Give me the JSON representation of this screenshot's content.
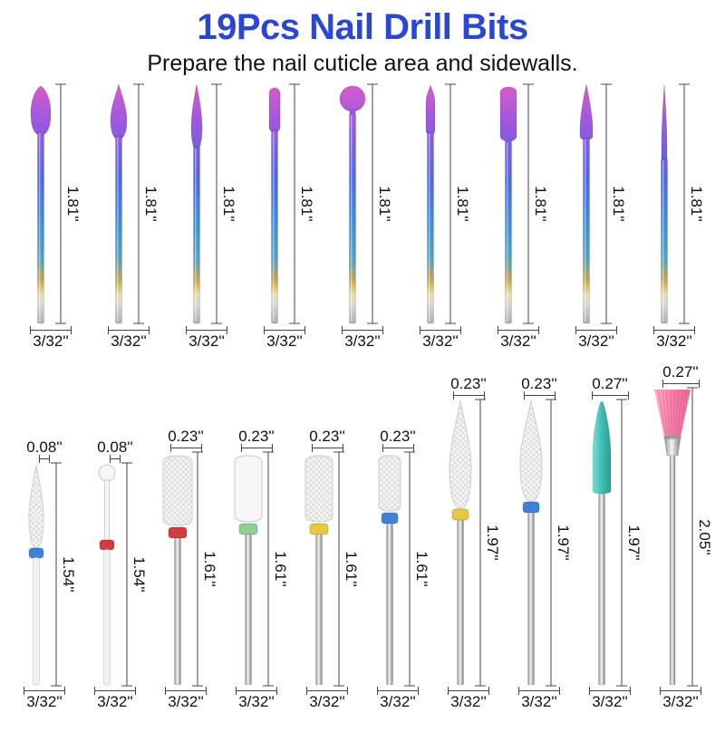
{
  "header": {
    "title": "19Pcs Nail Drill Bits",
    "subtitle": "Prepare the nail cuticle area and sidewalls.",
    "title_color": "#2b47cf",
    "text_color": "#111111"
  },
  "dimension_line_color": "#444444",
  "rows": [
    {
      "name": "rainbow-coated-bits",
      "bits": [
        {
          "shape": "bud",
          "length": "1.81''",
          "shank": "3/32''"
        },
        {
          "shape": "flame",
          "length": "1.81''",
          "shank": "3/32''"
        },
        {
          "shape": "flame-slim",
          "length": "1.81''",
          "shank": "3/32''"
        },
        {
          "shape": "cylinder",
          "length": "1.81''",
          "shank": "3/32''"
        },
        {
          "shape": "ball",
          "length": "1.81''",
          "shank": "3/32''"
        },
        {
          "shape": "taper",
          "length": "1.81''",
          "shank": "3/32''"
        },
        {
          "shape": "barrel",
          "length": "1.81''",
          "shank": "3/32''"
        },
        {
          "shape": "cone",
          "length": "1.81''",
          "shank": "3/32''"
        },
        {
          "shape": "needle",
          "length": "1.81''",
          "shank": "3/32''"
        }
      ]
    },
    {
      "name": "ceramic-and-finishing-bits",
      "bits": [
        {
          "shape": "flame-white-small",
          "tip": "0.08''",
          "length": "1.54''",
          "shank": "3/32''",
          "ring": "#3b82d8"
        },
        {
          "shape": "ball-white-small",
          "tip": "0.08''",
          "length": "1.54''",
          "shank": "3/32''",
          "ring": "#cf3d3d"
        },
        {
          "shape": "barrel-hatch-large",
          "tip": "0.23''",
          "length": "1.61''",
          "shank": "3/32''",
          "ring": "#cf3d3d"
        },
        {
          "shape": "barrel-smooth",
          "tip": "0.23''",
          "length": "1.61''",
          "shank": "3/32''",
          "ring": "#8fce8f"
        },
        {
          "shape": "barrel-hatch",
          "tip": "0.23''",
          "length": "1.61''",
          "shank": "3/32''",
          "ring": "#e7c93f"
        },
        {
          "shape": "barrel-hatch-small",
          "tip": "0.23''",
          "length": "1.61''",
          "shank": "3/32''",
          "ring": "#3b82d8"
        },
        {
          "shape": "flame-white-large",
          "tip": "0.23''",
          "length": "1.97''",
          "shank": "3/32''",
          "ring": "#e7c93f"
        },
        {
          "shape": "flame-white-large2",
          "tip": "0.23''",
          "length": "1.97''",
          "shank": "3/32''",
          "ring": "#3b82d8"
        },
        {
          "shape": "cone-teal",
          "tip": "0.27''",
          "length": "1.97''",
          "shank": "3/32''",
          "color": "#3fbdb4"
        },
        {
          "shape": "brush",
          "tip": "0.27''",
          "length": "2.05''",
          "shank": "3/32''",
          "color": "#f77fa8"
        }
      ]
    }
  ]
}
